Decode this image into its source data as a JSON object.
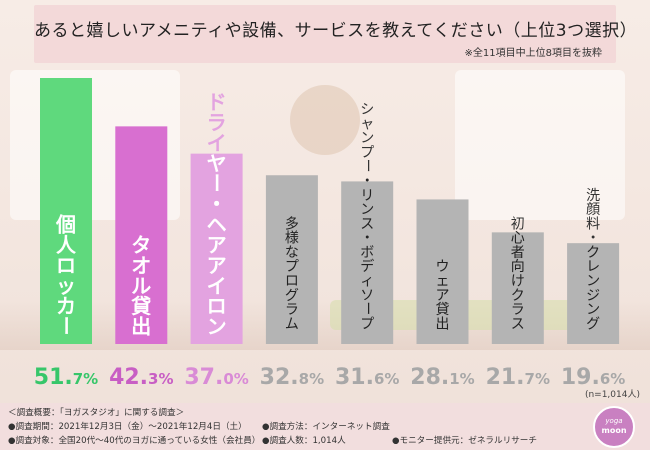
{
  "title": "あると嬉しいアメニティや設備、サービスを教えてください（上位3つ選択）",
  "subtitle": "※全11項目中上位8項目を抜粋",
  "sample_note": "(n=1,014人)",
  "footer": {
    "heading": "＜調査概要：「ヨガスタジオ」に関する調査＞",
    "period": "●調査期間：2021年12月3日（金）〜2021年12月4日（土）",
    "method": "●調査方法：インターネット調査",
    "target": "●調査対象：全国20代〜40代のヨガに通っている女性（会社員）",
    "count": "●調査人数：1,014人",
    "provider": "●モニター提供元：ゼネラルリサーチ"
  },
  "logo": {
    "line1": "yoga",
    "line2": "moon"
  },
  "colors": {
    "first": "#5fd97d",
    "second": "#d86fd0",
    "third": "#e3a3e0",
    "other": "#b4b4b4",
    "value_first": "#37c66a",
    "value_second": "#c85ec4",
    "value_third": "#d98bd6",
    "value_other": "#a8a8a8"
  },
  "chart_data": {
    "type": "bar",
    "unit": "%",
    "categories": [
      "個人ロッカー",
      "タオル貸出",
      "ドライヤー・ヘアアイロン",
      "多様なプログラム",
      "シャンプー・リンス・ボディソープ",
      "ウェア貸出",
      "初心者向けクラス",
      "洗顔料・クレンジング"
    ],
    "values": [
      51.7,
      42.3,
      37.0,
      32.8,
      31.6,
      28.1,
      21.7,
      19.6
    ],
    "value_labels": [
      "51.7",
      "42.3",
      "37.0",
      "32.8",
      "31.6",
      "28.1",
      "21.7",
      "19.6"
    ],
    "ylim": [
      0,
      51.7
    ]
  }
}
